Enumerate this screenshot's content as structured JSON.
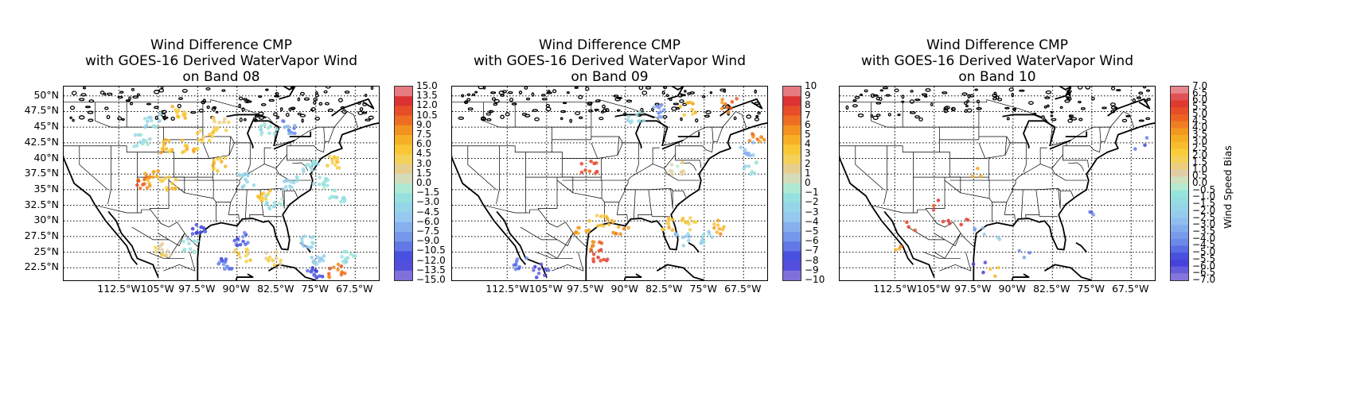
{
  "chart_data": [
    {
      "type": "scatter",
      "title": "Wind Difference CMP\nwith GOES-16 Derived WaterVapor Wind\non Band 08",
      "x_tick_labels": [
        "112.5°W",
        "105°W",
        "97.5°W",
        "90°W",
        "82.5°W",
        "75°W",
        "67.5°W"
      ],
      "y_tick_labels": [
        "50°N",
        "47.5°N",
        "45°N",
        "42.5°N",
        "40°N",
        "37.5°N",
        "35°N",
        "32.5°N",
        "30°N",
        "27.5°N",
        "25°N",
        "22.5°N"
      ],
      "xlim": [
        -123,
        -63
      ],
      "ylim": [
        20.5,
        51.5
      ],
      "colorbar_ticks": [
        "15.0",
        "13.5",
        "12.0",
        "10.5",
        "9.0",
        "7.5",
        "6.0",
        "4.5",
        "3.0",
        "1.5",
        "0.0",
        "−1.5",
        "−3.0",
        "−4.5",
        "−6.0",
        "−7.5",
        "−9.0",
        "−10.5",
        "−12.0",
        "−13.5",
        "−15.0"
      ],
      "colorbar_range": [
        -15,
        15
      ],
      "colorbar_label": "",
      "clusters": [
        {
          "lon": -106,
          "lat": 37.0,
          "bias": 7.0
        },
        {
          "lon": -108,
          "lat": 36.0,
          "bias": 9.5
        },
        {
          "lon": -103,
          "lat": 36.0,
          "bias": 5.5
        },
        {
          "lon": -99,
          "lat": 42.0,
          "bias": 6.0
        },
        {
          "lon": -103,
          "lat": 42.0,
          "bias": 6.5
        },
        {
          "lon": -108,
          "lat": 43.0,
          "bias": -2.0
        },
        {
          "lon": -106,
          "lat": 46.0,
          "bias": -3.0
        },
        {
          "lon": -101,
          "lat": 47.5,
          "bias": 5.0
        },
        {
          "lon": -96,
          "lat": 43.5,
          "bias": 4.5
        },
        {
          "lon": -93,
          "lat": 39.0,
          "bias": 5.5
        },
        {
          "lon": -88,
          "lat": 36.5,
          "bias": -3.5
        },
        {
          "lon": -85,
          "lat": 34.0,
          "bias": 5.0
        },
        {
          "lon": -83,
          "lat": 33.0,
          "bias": -2.0
        },
        {
          "lon": -80,
          "lat": 36.0,
          "bias": -3.5
        },
        {
          "lon": -76,
          "lat": 38.5,
          "bias": -2.5
        },
        {
          "lon": -74,
          "lat": 36.0,
          "bias": -2.0
        },
        {
          "lon": -72,
          "lat": 39.5,
          "bias": 4.5
        },
        {
          "lon": -71,
          "lat": 34.0,
          "bias": -3.0
        },
        {
          "lon": -97,
          "lat": 28.5,
          "bias": -11.0
        },
        {
          "lon": -99,
          "lat": 26.0,
          "bias": -2.5
        },
        {
          "lon": -104,
          "lat": 25.5,
          "bias": 3.0
        },
        {
          "lon": -89,
          "lat": 24.5,
          "bias": 4.5
        },
        {
          "lon": -89,
          "lat": 27.0,
          "bias": -10.0
        },
        {
          "lon": -92,
          "lat": 23.0,
          "bias": -10.0
        },
        {
          "lon": -83,
          "lat": 24.0,
          "bias": 3.0
        },
        {
          "lon": -77,
          "lat": 26.5,
          "bias": -3.5
        },
        {
          "lon": -75,
          "lat": 24.0,
          "bias": -5.0
        },
        {
          "lon": -71,
          "lat": 22.0,
          "bias": 10.0
        },
        {
          "lon": -75,
          "lat": 21.5,
          "bias": -11.0
        },
        {
          "lon": -69,
          "lat": 24.0,
          "bias": -2.0
        },
        {
          "lon": -84,
          "lat": 44.5,
          "bias": -2.5
        },
        {
          "lon": -80,
          "lat": 45.0,
          "bias": -8.0
        },
        {
          "lon": -93,
          "lat": 45.5,
          "bias": 3.0
        }
      ]
    },
    {
      "type": "scatter",
      "title": "Wind Difference CMP\nwith GOES-16 Derived WaterVapor Wind\non Band 09",
      "x_tick_labels": [
        "112.5°W",
        "105°W",
        "97.5°W",
        "90°W",
        "82.5°W",
        "75°W",
        "67.5°W"
      ],
      "y_tick_labels": [],
      "xlim": [
        -123,
        -63
      ],
      "ylim": [
        20.5,
        51.5
      ],
      "colorbar_ticks": [
        "10",
        "9",
        "8",
        "7",
        "6",
        "5",
        "4",
        "3",
        "2",
        "1",
        "0",
        "−1",
        "−2",
        "−3",
        "−4",
        "−5",
        "−6",
        "−7",
        "−8",
        "−9",
        "−10"
      ],
      "colorbar_range": [
        -10,
        10
      ],
      "colorbar_label": "",
      "clusters": [
        {
          "lon": -98,
          "lat": 29.0,
          "bias": 5.0
        },
        {
          "lon": -94,
          "lat": 30.0,
          "bias": 3.5
        },
        {
          "lon": -91,
          "lat": 29.0,
          "bias": 5.0
        },
        {
          "lon": -96,
          "lat": 26.0,
          "bias": 6.5
        },
        {
          "lon": -82,
          "lat": 29.5,
          "bias": 4.0
        },
        {
          "lon": -78,
          "lat": 29.5,
          "bias": 3.5
        },
        {
          "lon": -72,
          "lat": 29.0,
          "bias": 4.5
        },
        {
          "lon": -79,
          "lat": 27.0,
          "bias": -3.0
        },
        {
          "lon": -75,
          "lat": 27.5,
          "bias": -2.5
        },
        {
          "lon": -67,
          "lat": 41.5,
          "bias": -4.0
        },
        {
          "lon": -66,
          "lat": 38.5,
          "bias": -1.5
        },
        {
          "lon": -65,
          "lat": 43.0,
          "bias": 6.0
        },
        {
          "lon": -106,
          "lat": 22.0,
          "bias": -8.0
        },
        {
          "lon": -110,
          "lat": 23.0,
          "bias": -6.0
        },
        {
          "lon": -95,
          "lat": 24.5,
          "bias": 8.0
        },
        {
          "lon": -84,
          "lat": 47.5,
          "bias": -5.0
        },
        {
          "lon": -78,
          "lat": 48.0,
          "bias": 4.0
        },
        {
          "lon": -70,
          "lat": 48.5,
          "bias": 6.0
        },
        {
          "lon": -97,
          "lat": 38.5,
          "bias": 7.5
        },
        {
          "lon": -88,
          "lat": 46.5,
          "bias": -2.0
        },
        {
          "lon": -80,
          "lat": 38.5,
          "bias": 1.0
        }
      ]
    },
    {
      "type": "scatter",
      "title": "Wind Difference CMP\nwith GOES-16 Derived WaterVapor Wind\non Band 10",
      "x_tick_labels": [
        "112.5°W",
        "105°W",
        "97.5°W",
        "90°W",
        "82.5°W",
        "75°W",
        "67.5°W"
      ],
      "y_tick_labels": [],
      "xlim": [
        -123,
        -63
      ],
      "ylim": [
        20.5,
        51.5
      ],
      "colorbar_ticks": [
        "7.0",
        "6.5",
        "6.0",
        "5.5",
        "5.0",
        "4.5",
        "4.0",
        "3.5",
        "3.0",
        "2.5",
        "2.0",
        "1.5",
        "1.0",
        "0.5",
        "0.0",
        "−0.5",
        "−1.0",
        "−1.5",
        "−2.0",
        "−2.5",
        "−3.0",
        "−3.5",
        "−4.0",
        "−4.5",
        "−5.0",
        "−5.5",
        "−6.0",
        "−6.5",
        "−7.0"
      ],
      "colorbar_range": [
        -7,
        7
      ],
      "colorbar_label": "Wind Speed Bias",
      "clusters": [
        {
          "lon": -104,
          "lat": 32.5,
          "bias": 5.5
        },
        {
          "lon": -102,
          "lat": 29.5,
          "bias": 6.0
        },
        {
          "lon": -99,
          "lat": 30.0,
          "bias": 5.5
        },
        {
          "lon": -96,
          "lat": 28.0,
          "bias": -3.5
        },
        {
          "lon": -94,
          "lat": 27.0,
          "bias": -2.0
        },
        {
          "lon": -96,
          "lat": 22.5,
          "bias": -5.5
        },
        {
          "lon": -93,
          "lat": 22.0,
          "bias": 3.0
        },
        {
          "lon": -88,
          "lat": 24.5,
          "bias": -4.0
        },
        {
          "lon": -109,
          "lat": 29.0,
          "bias": 5.0
        },
        {
          "lon": -112,
          "lat": 25.5,
          "bias": 4.0
        },
        {
          "lon": -97,
          "lat": 37.5,
          "bias": 3.5
        },
        {
          "lon": -74,
          "lat": 31.5,
          "bias": -4.5
        },
        {
          "lon": -66,
          "lat": 42.5,
          "bias": -5.0
        }
      ]
    }
  ]
}
